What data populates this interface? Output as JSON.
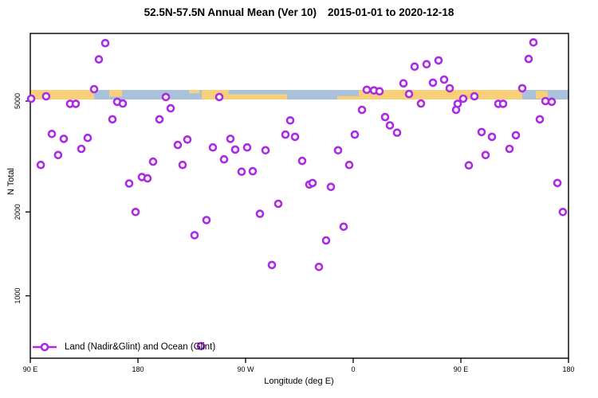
{
  "header": {
    "title_main": "52.5N-57.5N Annual Mean (Ver 10)",
    "title_dates": "2015-01-01 to 2020-12-18"
  },
  "chart_data": {
    "type": "scatter",
    "title": "52.5N-57.5N Annual Mean (Ver 10)",
    "subtitle": "2015-01-01 to 2020-12-18",
    "xlabel": "Longitude (deg E)",
    "ylabel": "N Total",
    "grid": false,
    "x_axis": {
      "note": "longitude axis wraps eastward from 90E through 180, 90W, 0, back to 180",
      "tick_values_deg": [
        90,
        180,
        270,
        360,
        450,
        540
      ],
      "tick_labels": [
        "90 E",
        "180",
        "90 W",
        "0",
        "90 E",
        "180"
      ],
      "range_deg": [
        89,
        540
      ]
    },
    "y_axis": {
      "scale": "log",
      "tick_values": [
        5000,
        2000,
        1000
      ],
      "tick_labels": [
        "5000",
        "2000",
        "1000"
      ],
      "range": [
        600,
        8700
      ]
    },
    "legend": {
      "label": "Land (Nadir&Glint) and Ocean (Glint)",
      "position": "bottom-left",
      "marker": "open-circle-on-line"
    },
    "marker": {
      "shape": "open-circle",
      "color": "#AB2BE2",
      "fill": "#FFFFFF"
    },
    "land_ocean_band": {
      "description": "horizontal land/ocean map strip across plot near N=5300",
      "approx_value_top": 5480,
      "approx_value_bottom": 5060,
      "ocean_color": "#AAC1DB",
      "land_color": "#F9D07A",
      "base": "ocean",
      "land_segments": [
        {
          "from_deg": 89.0,
          "to_deg": 143.3,
          "frac": 1.0,
          "align": "full"
        },
        {
          "from_deg": 156.0,
          "to_deg": 166.7,
          "frac": 0.7,
          "align": "top"
        },
        {
          "from_deg": 222.7,
          "to_deg": 231.3,
          "frac": 0.35,
          "align": "top"
        },
        {
          "from_deg": 233.3,
          "to_deg": 256.0,
          "frac": 1.0,
          "align": "full"
        },
        {
          "from_deg": 256.0,
          "to_deg": 304.7,
          "frac": 0.55,
          "align": "bottom"
        },
        {
          "from_deg": 346.7,
          "to_deg": 364.7,
          "frac": 0.35,
          "align": "bottom"
        },
        {
          "from_deg": 364.7,
          "to_deg": 501.3,
          "frac": 1.0,
          "align": "full"
        },
        {
          "from_deg": 512.7,
          "to_deg": 522.7,
          "frac": 0.8,
          "align": "middle"
        }
      ]
    },
    "points": [
      [
        152.7,
        8070
      ],
      [
        147.3,
        7060
      ],
      [
        143.3,
        5520
      ],
      [
        103.3,
        5200
      ],
      [
        90.7,
        5100
      ],
      [
        123.3,
        4890
      ],
      [
        128.0,
        4890
      ],
      [
        162.7,
        4970
      ],
      [
        167.3,
        4900
      ],
      [
        203.3,
        5170
      ],
      [
        207.3,
        4710
      ],
      [
        158.7,
        4300
      ],
      [
        198.0,
        4300
      ],
      [
        108.0,
        3810
      ],
      [
        118.0,
        3660
      ],
      [
        138.0,
        3690
      ],
      [
        132.7,
        3370
      ],
      [
        113.3,
        3200
      ],
      [
        221.3,
        3640
      ],
      [
        213.3,
        3480
      ],
      [
        98.7,
        2950
      ],
      [
        192.7,
        3030
      ],
      [
        217.3,
        2950
      ],
      [
        183.3,
        2670
      ],
      [
        188.0,
        2640
      ],
      [
        172.7,
        2530
      ],
      [
        248.0,
        5170
      ],
      [
        371.3,
        5490
      ],
      [
        377.3,
        5460
      ],
      [
        382.0,
        5420
      ],
      [
        367.3,
        4650
      ],
      [
        386.7,
        4380
      ],
      [
        307.3,
        4260
      ],
      [
        303.3,
        3790
      ],
      [
        311.3,
        3720
      ],
      [
        361.3,
        3790
      ],
      [
        257.3,
        3660
      ],
      [
        242.7,
        3410
      ],
      [
        261.3,
        3350
      ],
      [
        271.3,
        3410
      ],
      [
        252.0,
        3090
      ],
      [
        286.7,
        3330
      ],
      [
        347.3,
        3330
      ],
      [
        317.3,
        3050
      ],
      [
        356.7,
        2950
      ],
      [
        266.7,
        2790
      ],
      [
        276.0,
        2800
      ],
      [
        323.3,
        2510
      ],
      [
        326.0,
        2540
      ],
      [
        341.3,
        2460
      ],
      [
        510.7,
        8120
      ],
      [
        506.7,
        7080
      ],
      [
        431.3,
        7000
      ],
      [
        421.3,
        6780
      ],
      [
        411.3,
        6650
      ],
      [
        436.0,
        5970
      ],
      [
        426.7,
        5820
      ],
      [
        402.0,
        5790
      ],
      [
        440.7,
        5560
      ],
      [
        406.7,
        5300
      ],
      [
        501.3,
        5560
      ],
      [
        416.7,
        4900
      ],
      [
        452.0,
        5100
      ],
      [
        461.3,
        5200
      ],
      [
        447.3,
        4890
      ],
      [
        446.0,
        4650
      ],
      [
        481.3,
        4890
      ],
      [
        485.3,
        4890
      ],
      [
        520.7,
        5000
      ],
      [
        526.0,
        4970
      ],
      [
        516.0,
        4300
      ],
      [
        390.7,
        4090
      ],
      [
        396.7,
        3850
      ],
      [
        467.3,
        3870
      ],
      [
        476.0,
        3720
      ],
      [
        496.0,
        3770
      ],
      [
        490.7,
        3370
      ],
      [
        470.7,
        3200
      ],
      [
        456.7,
        2940
      ],
      [
        530.7,
        2540
      ],
      [
        178.0,
        2000
      ],
      [
        237.3,
        1870
      ],
      [
        227.3,
        1650
      ],
      [
        282.0,
        1970
      ],
      [
        297.3,
        2140
      ],
      [
        292.0,
        1290
      ],
      [
        232.7,
        660
      ],
      [
        352.0,
        1770
      ],
      [
        337.3,
        1580
      ],
      [
        331.3,
        1270
      ],
      [
        535.3,
        2000
      ]
    ]
  }
}
